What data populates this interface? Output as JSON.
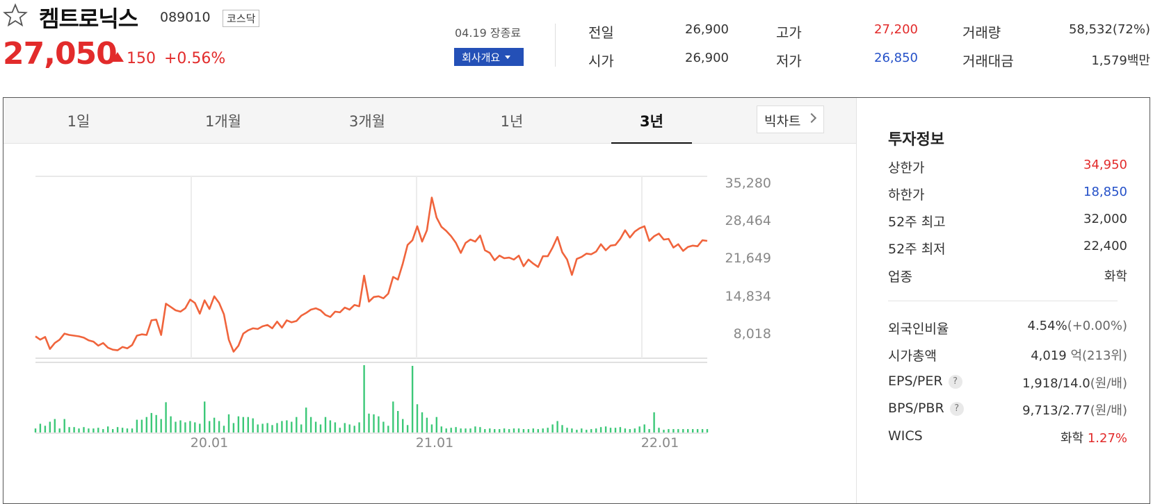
{
  "header": {
    "name": "켐트로닉스",
    "code": "089010",
    "market": "코스닥",
    "price": "27,050",
    "change": "150",
    "change_pct": "+0.56%",
    "close_date": "04.19 장종료",
    "company_button": "회사개요",
    "stats": {
      "prev_label": "전일",
      "prev": "26,900",
      "high_label": "고가",
      "high": "27,200",
      "volume_label": "거래량",
      "volume": "58,532(72%)",
      "open_label": "시가",
      "open": "26,900",
      "low_label": "저가",
      "low": "26,850",
      "amount_label": "거래대금",
      "amount": "1,579백만"
    },
    "colors": {
      "up": "#e22b2b",
      "down": "#2450c8",
      "button": "#2450b7"
    }
  },
  "tabs": [
    "1일",
    "1개월",
    "3개월",
    "1년",
    "3년"
  ],
  "active_tab": "3년",
  "big_chart_button": "빅차트",
  "invest": {
    "title": "투자정보",
    "upper_label": "상한가",
    "upper": "34,950",
    "lower_label": "하한가",
    "lower": "18,850",
    "high52_label": "52주 최고",
    "high52": "32,000",
    "low52_label": "52주 최저",
    "low52": "22,400",
    "sector_label": "업종",
    "sector": "화학",
    "foreign_label": "외국인비율",
    "foreign": "4.54%",
    "foreign_chg": "(+0.00%)",
    "mcap_label": "시가총액",
    "mcap": "4,019",
    "mcap_unit": "억(213위)",
    "eps_label": "EPS/PER",
    "eps": "1,918/14.0",
    "eps_unit": "(원/배)",
    "bps_label": "BPS/PBR",
    "bps": "9,713/2.77",
    "bps_unit": "(원/배)",
    "wics_label": "WICS",
    "wics": "화학",
    "wics_pct": "1.27%",
    "help_icon": "?"
  },
  "chart_data": {
    "type": "line",
    "y_ticks": [
      "35,280",
      "28,464",
      "21,649",
      "14,834",
      "8,018"
    ],
    "x_ticks": [
      "20.01",
      "21.01",
      "22.01"
    ],
    "ylim": [
      8018,
      35280
    ],
    "price_color": "#f0643c",
    "volume_color": "#3cc878",
    "price_series": [
      11300,
      10800,
      11200,
      9400,
      10300,
      10800,
      11700,
      11500,
      11400,
      11300,
      11100,
      10700,
      10500,
      9900,
      10300,
      9600,
      9300,
      9200,
      9700,
      9500,
      10000,
      11400,
      11600,
      11500,
      13700,
      13800,
      11500,
      16200,
      15700,
      15200,
      15000,
      15500,
      16800,
      16300,
      14700,
      16700,
      15400,
      17300,
      16300,
      14600,
      10800,
      9000,
      9900,
      11700,
      12200,
      12500,
      12400,
      12800,
      13000,
      12500,
      13500,
      12600,
      13700,
      13400,
      13600,
      14400,
      14800,
      15300,
      15500,
      15200,
      14500,
      14200,
      15000,
      14900,
      15600,
      15300,
      16000,
      15800,
      20400,
      16500,
      17200,
      17300,
      17000,
      17700,
      20200,
      19800,
      22200,
      25000,
      25700,
      27800,
      25500,
      27200,
      32100,
      29100,
      27700,
      27100,
      26300,
      25300,
      23800,
      25300,
      25800,
      25500,
      26400,
      24200,
      23800,
      22700,
      23400,
      23000,
      23100,
      22800,
      23400,
      21800,
      22800,
      22200,
      21700,
      23300,
      23300,
      24600,
      26200,
      23900,
      22800,
      20500,
      22900,
      23200,
      23700,
      23600,
      24000,
      25100,
      24200,
      24900,
      25000,
      25900,
      27200,
      26100,
      27000,
      27500,
      27800,
      25600,
      26300,
      26700,
      25800,
      25900,
      24600,
      25100,
      24100,
      24700,
      24900,
      24800,
      25700,
      25600
    ],
    "volume_series": [
      0.06,
      0.13,
      0.1,
      0.16,
      0.2,
      0.06,
      0.2,
      0.08,
      0.08,
      0.06,
      0.08,
      0.06,
      0.06,
      0.07,
      0.05,
      0.09,
      0.05,
      0.08,
      0.07,
      0.06,
      0.06,
      0.19,
      0.19,
      0.23,
      0.29,
      0.26,
      0.2,
      0.45,
      0.24,
      0.16,
      0.18,
      0.15,
      0.17,
      0.15,
      0.13,
      0.46,
      0.17,
      0.22,
      0.17,
      0.1,
      0.27,
      0.14,
      0.24,
      0.23,
      0.23,
      0.21,
      0.12,
      0.13,
      0.14,
      0.11,
      0.14,
      0.17,
      0.18,
      0.16,
      0.23,
      0.12,
      0.37,
      0.23,
      0.16,
      0.12,
      0.23,
      0.18,
      0.15,
      0.07,
      0.14,
      0.12,
      0.1,
      0.15,
      1.0,
      0.28,
      0.27,
      0.24,
      0.16,
      0.1,
      0.46,
      0.32,
      0.2,
      0.11,
      0.99,
      0.42,
      0.3,
      0.22,
      0.12,
      0.23,
      0.09,
      0.06,
      0.07,
      0.08,
      0.06,
      0.06,
      0.06,
      0.09,
      0.08,
      0.05,
      0.06,
      0.05,
      0.05,
      0.06,
      0.05,
      0.06,
      0.06,
      0.05,
      0.05,
      0.06,
      0.05,
      0.06,
      0.07,
      0.12,
      0.17,
      0.11,
      0.07,
      0.06,
      0.04,
      0.06,
      0.04,
      0.05,
      0.06,
      0.08,
      0.09,
      0.07,
      0.07,
      0.08,
      0.06,
      0.05,
      0.06,
      0.09,
      0.12,
      0.05,
      0.3,
      0.07,
      0.04,
      0.05,
      0.05,
      0.05,
      0.05,
      0.05,
      0.05,
      0.05,
      0.05,
      0.05
    ]
  }
}
